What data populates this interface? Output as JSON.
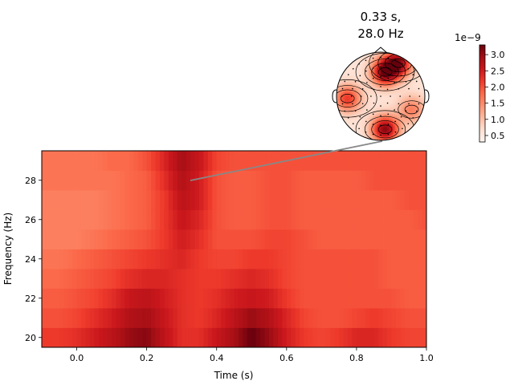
{
  "chart_data": [
    {
      "type": "heatmap",
      "title": "",
      "xlabel": "Time (s)",
      "ylabel": "Frequency (Hz)",
      "xlim": [
        -0.1,
        1.0
      ],
      "ylim": [
        19.5,
        29.5
      ],
      "x_ticks": [
        0.0,
        0.2,
        0.4,
        0.6,
        0.8,
        1.0
      ],
      "x_tick_labels": [
        "0.0",
        "0.2",
        "0.4",
        "0.6",
        "0.8",
        "1.0"
      ],
      "y_ticks": [
        20,
        22,
        24,
        26,
        28
      ],
      "y_tick_labels": [
        "20",
        "22",
        "24",
        "26",
        "28"
      ],
      "frequencies": [
        20,
        21,
        22,
        23,
        24,
        25,
        26,
        27,
        28,
        29
      ],
      "times": [
        -0.1,
        -0.05,
        0.0,
        0.05,
        0.1,
        0.15,
        0.2,
        0.25,
        0.3,
        0.35,
        0.4,
        0.45,
        0.5,
        0.55,
        0.6,
        0.65,
        0.7,
        0.75,
        0.8,
        0.85,
        0.9,
        0.95,
        1.0
      ],
      "values_1e-9": [
        [
          2.2,
          2.2,
          2.3,
          2.5,
          2.7,
          3.0,
          3.1,
          2.7,
          2.3,
          2.3,
          2.6,
          2.9,
          3.3,
          3.0,
          2.5,
          2.2,
          2.1,
          2.2,
          2.4,
          2.4,
          2.2,
          2.1,
          2.1
        ],
        [
          2.0,
          2.0,
          2.1,
          2.3,
          2.5,
          2.8,
          2.9,
          2.6,
          2.3,
          2.2,
          2.4,
          2.7,
          3.0,
          2.8,
          2.4,
          2.1,
          2.0,
          2.0,
          2.1,
          2.2,
          2.1,
          2.0,
          2.0
        ],
        [
          1.9,
          1.9,
          2.0,
          2.1,
          2.3,
          2.6,
          2.7,
          2.5,
          2.3,
          2.2,
          2.3,
          2.5,
          2.6,
          2.5,
          2.2,
          2.0,
          2.0,
          2.0,
          2.0,
          2.0,
          2.0,
          1.9,
          1.9
        ],
        [
          1.8,
          1.8,
          1.9,
          2.0,
          2.1,
          2.3,
          2.4,
          2.4,
          2.3,
          2.2,
          2.2,
          2.3,
          2.4,
          2.3,
          2.1,
          2.0,
          2.0,
          2.0,
          2.0,
          2.0,
          1.9,
          1.9,
          1.9
        ],
        [
          1.7,
          1.7,
          1.8,
          1.9,
          2.0,
          2.1,
          2.2,
          2.3,
          2.4,
          2.2,
          2.1,
          2.1,
          2.2,
          2.2,
          2.1,
          2.0,
          2.0,
          2.0,
          2.0,
          2.0,
          1.9,
          1.9,
          1.9
        ],
        [
          1.6,
          1.6,
          1.6,
          1.7,
          1.8,
          1.9,
          2.0,
          2.2,
          2.5,
          2.3,
          2.0,
          2.0,
          2.0,
          2.1,
          2.1,
          2.0,
          1.9,
          1.9,
          1.9,
          1.9,
          1.9,
          1.9,
          1.9
        ],
        [
          1.6,
          1.6,
          1.6,
          1.6,
          1.7,
          1.8,
          1.9,
          2.2,
          2.6,
          2.4,
          2.0,
          1.9,
          1.9,
          2.0,
          2.0,
          1.9,
          1.9,
          1.9,
          1.9,
          1.9,
          1.9,
          1.9,
          2.0
        ],
        [
          1.6,
          1.6,
          1.6,
          1.6,
          1.7,
          1.8,
          1.9,
          2.2,
          2.7,
          2.5,
          2.0,
          1.9,
          1.9,
          2.0,
          2.0,
          1.9,
          1.9,
          1.9,
          1.9,
          1.9,
          1.9,
          2.0,
          2.0
        ],
        [
          1.7,
          1.7,
          1.7,
          1.7,
          1.7,
          1.8,
          1.9,
          2.3,
          2.8,
          2.5,
          2.0,
          1.9,
          1.9,
          2.0,
          2.0,
          1.9,
          1.9,
          1.9,
          1.9,
          2.0,
          2.0,
          2.0,
          2.0
        ],
        [
          1.7,
          1.7,
          1.7,
          1.7,
          1.8,
          1.8,
          2.0,
          2.4,
          2.9,
          2.6,
          2.1,
          2.0,
          2.0,
          2.0,
          2.0,
          2.0,
          2.0,
          2.0,
          2.0,
          2.0,
          2.0,
          2.0,
          2.0
        ]
      ],
      "cmap": "Reds"
    },
    {
      "type": "topomap",
      "title_line1": "0.33 s,",
      "title_line2": "28.0 Hz",
      "time": 0.33,
      "frequency": 28.0,
      "colorbar": {
        "multiplier_label": "1e−9",
        "min": 0.3,
        "max": 3.3,
        "ticks": [
          0.5,
          1.0,
          1.5,
          2.0,
          2.5,
          3.0
        ],
        "tick_labels": [
          "0.5",
          "1.0",
          "1.5",
          "2.0",
          "2.5",
          "3.0"
        ]
      },
      "hotspots": [
        {
          "pos": [
            0.1,
            -0.55
          ],
          "value": 3.2
        },
        {
          "pos": [
            0.4,
            -0.75
          ],
          "value": 2.9
        },
        {
          "pos": [
            0.1,
            0.75
          ],
          "value": 3.1
        },
        {
          "pos": [
            -0.75,
            0.05
          ],
          "value": 2.2
        },
        {
          "pos": [
            0.7,
            0.3
          ],
          "value": 1.6
        }
      ],
      "base_value": 0.6
    }
  ],
  "colors": {
    "cmap_reds": [
      "#fff5f0",
      "#fee0d2",
      "#fcbba1",
      "#fc9272",
      "#fb6a4a",
      "#ef3b2c",
      "#cb181d",
      "#a50f15",
      "#67000d"
    ],
    "connector": "#888888"
  }
}
